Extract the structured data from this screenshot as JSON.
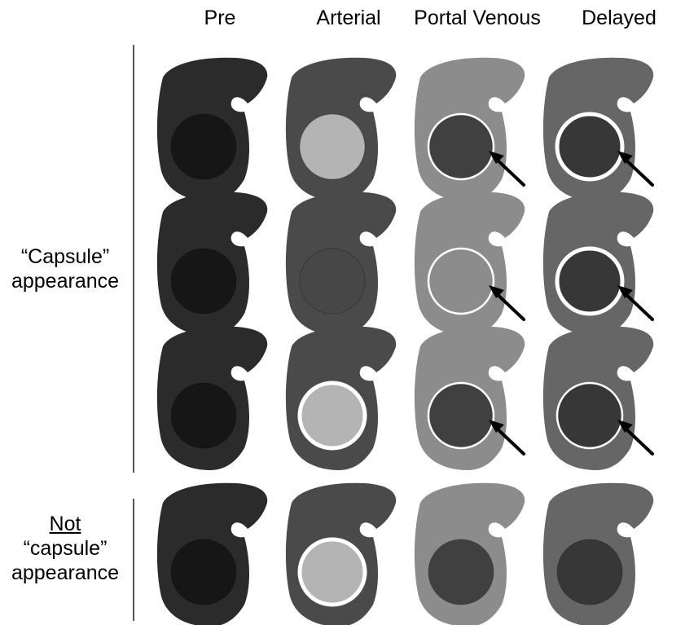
{
  "columns": [
    {
      "label": "Pre"
    },
    {
      "label": "Arterial"
    },
    {
      "label": "Portal Venous"
    },
    {
      "label": "Delayed"
    }
  ],
  "groups": [
    {
      "lines": [
        "“Capsule”",
        "appearance"
      ],
      "underline_first": false
    },
    {
      "lines": [
        "Not",
        "“capsule”",
        "appearance"
      ],
      "underline_first": true
    }
  ],
  "colors": {
    "pre_liver": "#2b2b2b",
    "pre_lesion": "#161616",
    "arterial_liver": "#4a4a4a",
    "arterial_bright_lesion": "#b4b4b4",
    "arterial_iso_lesion": "#474747",
    "portal_liver": "#8c8c8c",
    "portal_dark_lesion": "#404040",
    "portal_iso_lesion": "#8c8c8c",
    "delayed_liver": "#666666",
    "delayed_lesion": "#373737",
    "capsule_rim": "#ffffff",
    "arrow": "#000000"
  },
  "cells": [
    [
      {
        "liver": "pre_liver",
        "lesion": "pre_lesion",
        "rim": "none",
        "arrow": false
      },
      {
        "liver": "arterial_liver",
        "lesion": "arterial_bright_lesion",
        "rim": "none",
        "arrow": false
      },
      {
        "liver": "portal_liver",
        "lesion": "portal_dark_lesion",
        "rim": "thin",
        "arrow": true
      },
      {
        "liver": "delayed_liver",
        "lesion": "delayed_lesion",
        "rim": "thick",
        "arrow": true
      }
    ],
    [
      {
        "liver": "pre_liver",
        "lesion": "pre_lesion",
        "rim": "none",
        "arrow": false
      },
      {
        "liver": "arterial_liver",
        "lesion": "arterial_iso_lesion",
        "rim": "none",
        "arrow": false
      },
      {
        "liver": "portal_liver",
        "lesion": "portal_iso_lesion",
        "rim": "thin",
        "arrow": true
      },
      {
        "liver": "delayed_liver",
        "lesion": "delayed_lesion",
        "rim": "thick",
        "arrow": true
      }
    ],
    [
      {
        "liver": "pre_liver",
        "lesion": "pre_lesion",
        "rim": "none",
        "arrow": false
      },
      {
        "liver": "arterial_liver",
        "lesion": "arterial_bright_lesion",
        "rim": "thick",
        "arrow": false
      },
      {
        "liver": "portal_liver",
        "lesion": "portal_dark_lesion",
        "rim": "thin",
        "arrow": true
      },
      {
        "liver": "delayed_liver",
        "lesion": "delayed_lesion",
        "rim": "thin",
        "arrow": true
      }
    ],
    [
      {
        "liver": "pre_liver",
        "lesion": "pre_lesion",
        "rim": "none",
        "arrow": false
      },
      {
        "liver": "arterial_liver",
        "lesion": "arterial_bright_lesion",
        "rim": "thick",
        "arrow": false
      },
      {
        "liver": "portal_liver",
        "lesion": "portal_dark_lesion",
        "rim": "none",
        "arrow": false
      },
      {
        "liver": "delayed_liver",
        "lesion": "delayed_lesion",
        "rim": "none",
        "arrow": false
      }
    ]
  ]
}
